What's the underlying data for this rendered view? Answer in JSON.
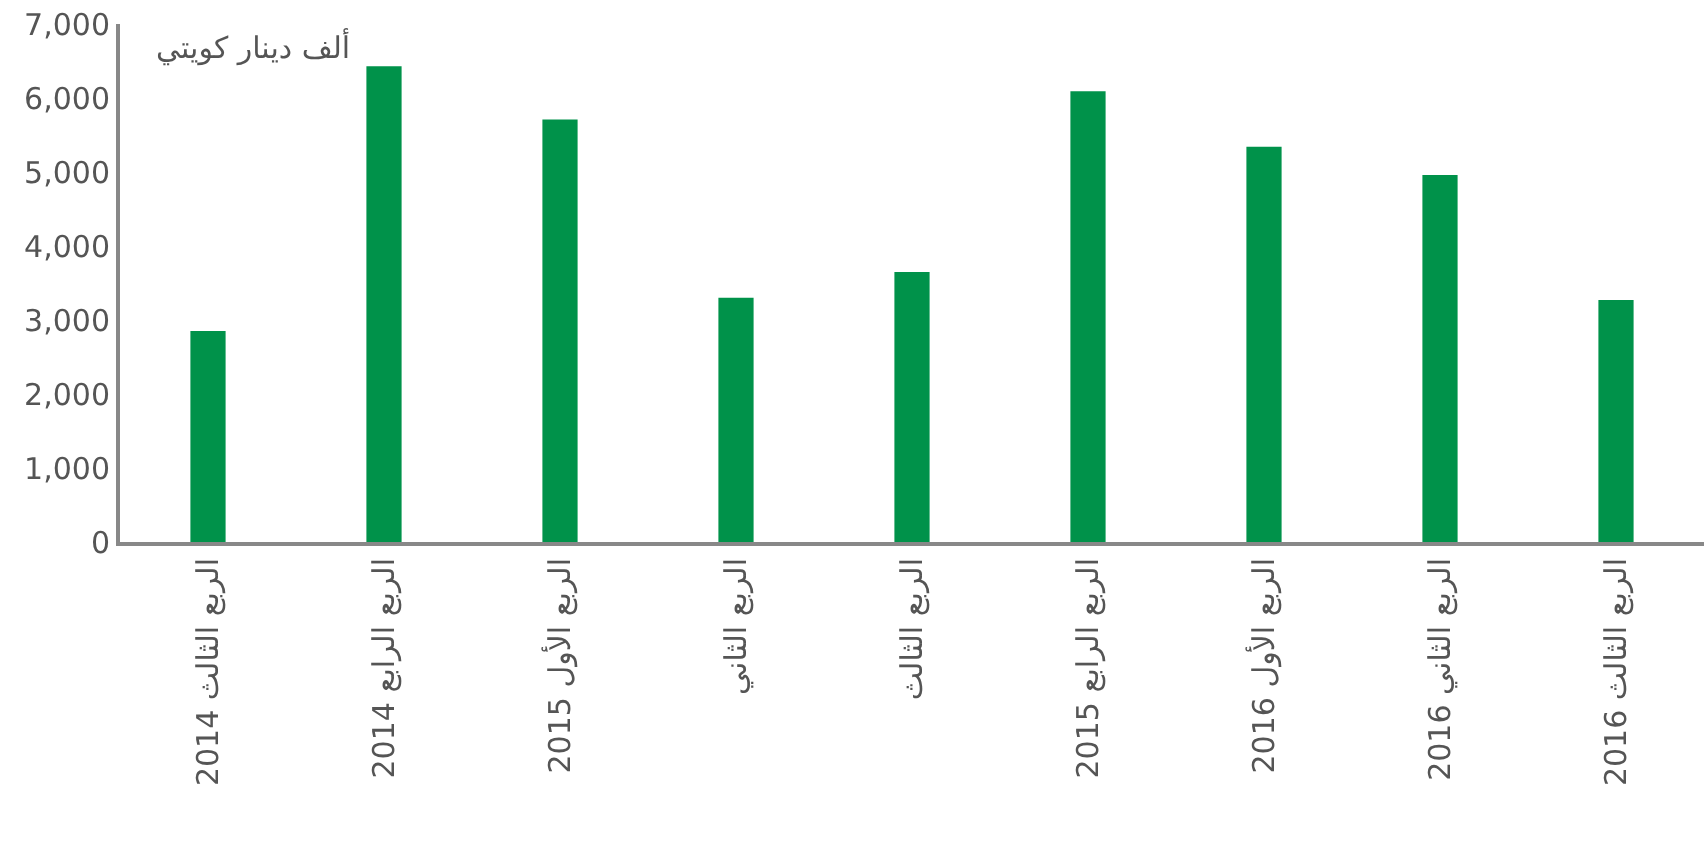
{
  "chart_data": {
    "type": "bar",
    "ylabel": "ألف دينار كويتي",
    "categories": [
      "الربع الثالث 2014",
      "الربع الرابع 2014",
      "الربع الأول 2015",
      "الربع الثاني",
      "الربع الثالث",
      "الربع الرابع 2015",
      "الربع الأول 2016",
      "الربع الثاني 2016",
      "الربع الثالث 2016"
    ],
    "values": [
      2850,
      6430,
      5710,
      3300,
      3650,
      6090,
      5340,
      4960,
      3270
    ],
    "color": "#00924a",
    "ylim": [
      0,
      7000
    ],
    "yticks": [
      {
        "value": 0,
        "label": "0"
      },
      {
        "value": 1000,
        "label": "1,000"
      },
      {
        "value": 2000,
        "label": "2,000"
      },
      {
        "value": 3000,
        "label": "3,000"
      },
      {
        "value": 4000,
        "label": "4,000"
      },
      {
        "value": 5000,
        "label": "5,000"
      },
      {
        "value": 6000,
        "label": "6,000"
      },
      {
        "value": 7000,
        "label": "7,000"
      }
    ],
    "grid": false,
    "legend": false
  }
}
